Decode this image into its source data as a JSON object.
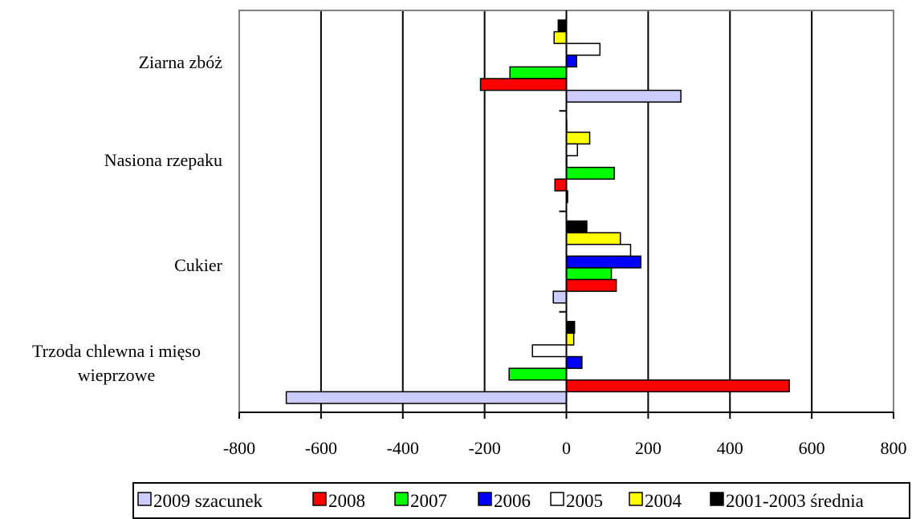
{
  "chart_data": {
    "type": "bar",
    "orientation": "horizontal",
    "categories": [
      "Ziarna zbóż",
      "Nasiona rzepaku",
      "Cukier",
      "Trzoda chlewna i mięso wieprzowe"
    ],
    "category_label_lines": [
      [
        "Ziarna zbóż"
      ],
      [
        "Nasiona rzepaku"
      ],
      [
        "Cukier"
      ],
      [
        "Trzoda chlewna i mięso",
        "wieprzowe"
      ]
    ],
    "series": [
      {
        "name": "2001-2003 średnia",
        "color": "#000000",
        "values": [
          -20,
          0,
          50,
          20
        ]
      },
      {
        "name": "2004",
        "color": "#ffff00",
        "values": [
          -30,
          57,
          132,
          18
        ]
      },
      {
        "name": "2005",
        "color": "#ffffff",
        "values": [
          82,
          27,
          157,
          -83
        ]
      },
      {
        "name": "2006",
        "color": "#0000ff",
        "values": [
          25,
          0,
          182,
          38
        ]
      },
      {
        "name": "2007",
        "color": "#00ff00",
        "values": [
          -138,
          117,
          110,
          -140
        ]
      },
      {
        "name": "2008",
        "color": "#ff0000",
        "values": [
          -210,
          -28,
          122,
          545
        ]
      },
      {
        "name": "2009 szacunek",
        "color": "#ccccff",
        "values": [
          280,
          3,
          -32,
          -685
        ]
      }
    ],
    "legend_order": [
      "2009 szacunek",
      "2008",
      "2007",
      "2006",
      "2005",
      "2004",
      "2001-2003 średnia"
    ],
    "xlim": [
      -800,
      800
    ],
    "xticks": [
      -800,
      -600,
      -400,
      -200,
      0,
      200,
      400,
      600,
      800
    ],
    "grid": true,
    "legend_position": "bottom",
    "title": "",
    "xlabel": "",
    "ylabel": ""
  }
}
